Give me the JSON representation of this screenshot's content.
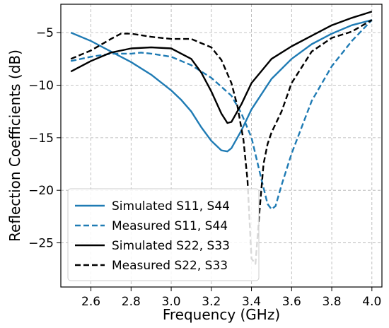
{
  "chart_data": {
    "type": "line",
    "title": "",
    "xlabel": "Frequency (GHz)",
    "ylabel": "Reflection Coefficients (dB)",
    "xlim": [
      2.45,
      4.05
    ],
    "ylim": [
      -29.2,
      -2.3
    ],
    "xticks": [
      2.6,
      2.8,
      3.0,
      3.2,
      3.4,
      3.6,
      3.8,
      4.0
    ],
    "xtick_labels": [
      "2.6",
      "2.8",
      "3.0",
      "3.2",
      "3.4",
      "3.6",
      "3.8",
      "4.0"
    ],
    "yticks": [
      -25,
      -20,
      -15,
      -10,
      -5
    ],
    "ytick_labels": [
      "−25",
      "−20",
      "−15",
      "−10",
      "−5"
    ],
    "grid": true,
    "legend_position": "lower-left",
    "series": [
      {
        "name": "Simulated S11, S44",
        "color": "#1f7bb4",
        "dash": "solid",
        "x": [
          2.5,
          2.6,
          2.7,
          2.8,
          2.9,
          3.0,
          3.05,
          3.1,
          3.15,
          3.2,
          3.25,
          3.28,
          3.3,
          3.35,
          3.4,
          3.5,
          3.6,
          3.7,
          3.8,
          3.9,
          4.0
        ],
        "y": [
          -5.0,
          -5.8,
          -6.8,
          -7.8,
          -9.0,
          -10.5,
          -11.4,
          -12.5,
          -14.0,
          -15.3,
          -16.2,
          -16.3,
          -16.0,
          -14.3,
          -12.3,
          -9.4,
          -7.5,
          -6.1,
          -5.1,
          -4.3,
          -3.8
        ]
      },
      {
        "name": "Measured S11, S44",
        "color": "#1f7bb4",
        "dash": "dashed",
        "x": [
          2.5,
          2.6,
          2.7,
          2.8,
          2.85,
          2.9,
          3.0,
          3.1,
          3.2,
          3.3,
          3.35,
          3.4,
          3.45,
          3.48,
          3.5,
          3.52,
          3.55,
          3.6,
          3.7,
          3.8,
          3.9,
          4.0
        ],
        "y": [
          -7.7,
          -7.3,
          -7.0,
          -7.0,
          -6.9,
          -7.0,
          -7.3,
          -8.1,
          -9.3,
          -11.0,
          -12.7,
          -15.0,
          -19.0,
          -21.3,
          -21.8,
          -21.5,
          -19.5,
          -16.5,
          -11.5,
          -8.2,
          -5.8,
          -3.8
        ]
      },
      {
        "name": "Simulated S22, S33",
        "color": "#000000",
        "dash": "solid",
        "x": [
          2.5,
          2.6,
          2.7,
          2.8,
          2.9,
          3.0,
          3.1,
          3.15,
          3.2,
          3.25,
          3.28,
          3.3,
          3.35,
          3.4,
          3.5,
          3.6,
          3.7,
          3.8,
          3.9,
          4.0
        ],
        "y": [
          -8.7,
          -7.7,
          -6.9,
          -6.5,
          -6.4,
          -6.5,
          -7.5,
          -8.8,
          -10.6,
          -12.7,
          -13.6,
          -13.5,
          -11.8,
          -9.8,
          -7.5,
          -6.3,
          -5.3,
          -4.3,
          -3.6,
          -3.0
        ]
      },
      {
        "name": "Measured S22, S33",
        "color": "#000000",
        "dash": "dashed",
        "x": [
          2.5,
          2.6,
          2.7,
          2.75,
          2.8,
          2.9,
          3.0,
          3.1,
          3.2,
          3.25,
          3.3,
          3.33,
          3.36,
          3.38,
          3.4,
          3.42,
          3.44,
          3.46,
          3.48,
          3.5,
          3.55,
          3.6,
          3.7,
          3.8,
          3.9,
          4.0
        ],
        "y": [
          -7.5,
          -6.7,
          -5.6,
          -5.1,
          -5.1,
          -5.4,
          -5.6,
          -5.6,
          -6.4,
          -7.6,
          -9.8,
          -12.0,
          -15.2,
          -19.0,
          -26.5,
          -27.0,
          -22.0,
          -17.5,
          -15.6,
          -14.5,
          -12.5,
          -9.8,
          -6.8,
          -5.5,
          -4.9,
          -3.8
        ]
      }
    ]
  }
}
